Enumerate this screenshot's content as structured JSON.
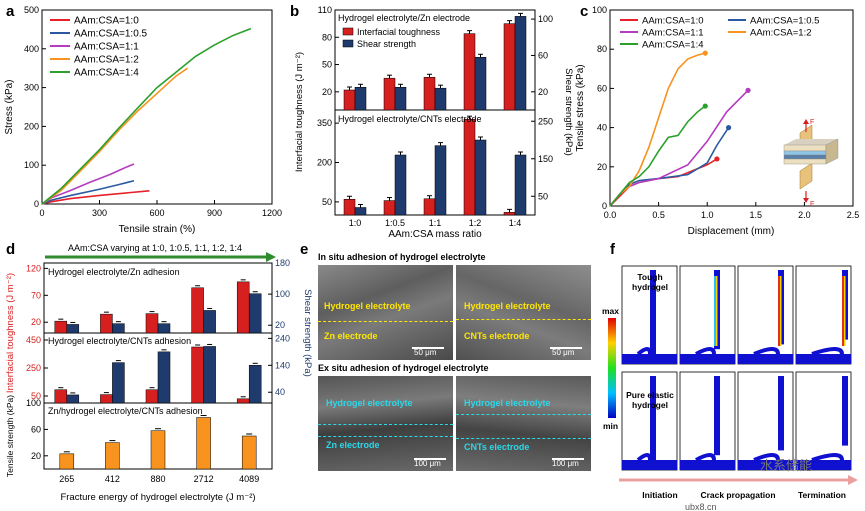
{
  "panel_labels": {
    "a": "a",
    "b": "b",
    "c": "c",
    "d": "d",
    "e": "e",
    "f": "f"
  },
  "colors": {
    "red": "#e8202a",
    "blue": "#2c5aa0",
    "magenta": "#b43cc0",
    "orange": "#f7931e",
    "green": "#2ca02c",
    "navy": "#1f3b6e",
    "dred": "#d62020",
    "arrowgreen": "#2e8b2e"
  },
  "chart_data": [
    {
      "id": "a",
      "type": "line",
      "xlabel": "Tensile strain (%)",
      "ylabel": "Stress (kPa)",
      "xlim": [
        0,
        1200
      ],
      "ylim": [
        0,
        500
      ],
      "xticks": [
        0,
        300,
        600,
        900,
        1200
      ],
      "yticks": [
        0,
        100,
        200,
        300,
        400,
        500
      ],
      "series": [
        {
          "name": "AAm:CSA=1:0",
          "color": "#e8202a",
          "x": [
            0,
            50,
            150,
            300,
            450,
            560
          ],
          "y": [
            0,
            6,
            14,
            22,
            29,
            34
          ]
        },
        {
          "name": "AAm:CSA=1:0.5",
          "color": "#2c5aa0",
          "x": [
            0,
            50,
            150,
            300,
            400,
            480
          ],
          "y": [
            0,
            10,
            22,
            38,
            50,
            60
          ]
        },
        {
          "name": "AAm:CSA=1:1",
          "color": "#b43cc0",
          "x": [
            0,
            50,
            150,
            250,
            350,
            440,
            480
          ],
          "y": [
            0,
            16,
            35,
            56,
            75,
            95,
            103
          ]
        },
        {
          "name": "AAm:CSA=1:2",
          "color": "#f7931e",
          "x": [
            0,
            100,
            200,
            300,
            400,
            500,
            600,
            700,
            760
          ],
          "y": [
            0,
            35,
            85,
            135,
            190,
            240,
            285,
            330,
            350
          ]
        },
        {
          "name": "AAm:CSA=1:4",
          "color": "#2ca02c",
          "x": [
            0,
            100,
            200,
            300,
            400,
            500,
            600,
            700,
            800,
            900,
            1000,
            1090
          ],
          "y": [
            0,
            40,
            90,
            140,
            195,
            248,
            300,
            340,
            380,
            410,
            435,
            452
          ]
        }
      ]
    },
    {
      "id": "b",
      "type": "bar",
      "title_top": "Hydrogel electrolyte/Zn electrode",
      "title_bottom": "Hydrogel electrolyte/CNTs electrode",
      "xlabel": "AAm:CSA mass ratio",
      "ylabel_left": "Interfacial toughness (J m⁻²)",
      "ylabel_right": "Shear strength (kPa)",
      "categories": [
        "1:0",
        "1:0.5",
        "1:1",
        "1:2",
        "1:4"
      ],
      "legend": [
        "Interfacial toughness",
        "Shear strength"
      ],
      "top_left_ticks": [
        "20",
        "50",
        "80",
        "110"
      ],
      "top_right_ticks": [
        "20",
        "60",
        "100"
      ],
      "bottom_left_ticks": [
        "50",
        "200",
        "350"
      ],
      "bottom_right_ticks": [
        "50",
        "150",
        "250"
      ],
      "top": {
        "ylim": [
          0,
          110
        ],
        "toughness": [
          22,
          35,
          36,
          84,
          95
        ],
        "shear_ylim": [
          0,
          110
        ],
        "shear": [
          25,
          25,
          24,
          58,
          103
        ]
      },
      "bottom": {
        "ylim": [
          0,
          400
        ],
        "toughness": [
          60,
          55,
          62,
          365,
          10
        ],
        "shear_ylim": [
          0,
          280
        ],
        "shear": [
          20,
          160,
          185,
          200,
          160
        ]
      }
    },
    {
      "id": "c",
      "type": "line",
      "xlabel": "Displacement (mm)",
      "ylabel": "Tensile stress (kPa)",
      "xlim": [
        0,
        2.5
      ],
      "ylim": [
        0,
        100
      ],
      "xticks": [
        "0.0",
        "0.5",
        "1.0",
        "1.5",
        "2.0",
        "2.5"
      ],
      "yticks": [
        0,
        20,
        40,
        60,
        80,
        100
      ],
      "series": [
        {
          "name": "AAm:CSA=1:0",
          "color": "#e8202a",
          "x": [
            0,
            0.1,
            0.2,
            0.3,
            0.5,
            0.7,
            0.9,
            1.0,
            1.1
          ],
          "y": [
            0,
            5,
            10,
            12,
            14,
            15,
            19,
            21,
            24
          ]
        },
        {
          "name": "AAm:CSA=1:0.5",
          "color": "#2c5aa0",
          "x": [
            0,
            0.1,
            0.2,
            0.3,
            0.5,
            0.8,
            1.0,
            1.1,
            1.22
          ],
          "y": [
            0,
            6,
            11,
            13,
            14,
            16,
            22,
            31,
            40
          ]
        },
        {
          "name": "AAm:CSA=1:1",
          "color": "#b43cc0",
          "x": [
            0,
            0.1,
            0.2,
            0.3,
            0.5,
            0.8,
            1.0,
            1.2,
            1.42
          ],
          "y": [
            0,
            6,
            10,
            12,
            14,
            21,
            33,
            48,
            59
          ]
        },
        {
          "name": "AAm:CSA=1:2",
          "color": "#f7931e",
          "x": [
            0,
            0.1,
            0.2,
            0.3,
            0.4,
            0.5,
            0.6,
            0.7,
            0.8,
            0.9,
            0.98
          ],
          "y": [
            0,
            6,
            10,
            18,
            30,
            45,
            60,
            70,
            75,
            77,
            78
          ]
        },
        {
          "name": "AAm:CSA=1:4",
          "color": "#2ca02c",
          "x": [
            0,
            0.1,
            0.2,
            0.3,
            0.4,
            0.5,
            0.6,
            0.7,
            0.8,
            0.9,
            0.98
          ],
          "y": [
            0,
            6,
            12,
            15,
            20,
            28,
            35,
            36,
            43,
            48,
            51
          ]
        }
      ],
      "force_label": "F"
    },
    {
      "id": "d",
      "type": "bar",
      "arrow_text": "AAm:CSA varying at 1:0, 1:0.5, 1:1, 1:2, 1:4",
      "xlabel": "Fracture energy of hydrogel electrolyte (J m⁻²)",
      "categories": [
        "265",
        "412",
        "880",
        "2712",
        "4089"
      ],
      "ylabel_left": "Interfacial toughness (J m⁻²)",
      "ylabel_right": "Shear strength (kPa)",
      "ylabel_bottom": "Tensile strength (kPa)",
      "sub_titles": [
        "Hydrogel electrolyte/Zn adhesion",
        "Hydrogel electrolyte/CNTs adhesion",
        "Zn/hydrogel electrolyte/CNTs adhesion"
      ],
      "top_left_ticks": [
        "20",
        "70",
        "120"
      ],
      "top_right_ticks": [
        "20",
        "100",
        "180"
      ],
      "mid_left_ticks": [
        "50",
        "250",
        "450"
      ],
      "mid_right_ticks": [
        "40",
        "140",
        "240"
      ],
      "bottom_ticks": [
        "20",
        "60",
        "100"
      ],
      "top": {
        "toughness": [
          22,
          35,
          36,
          84,
          95
        ],
        "shear": [
          22,
          24,
          24,
          58,
          101
        ]
      },
      "mid": {
        "toughness": [
          95,
          60,
          95,
          400,
          30
        ],
        "shear": [
          30,
          150,
          190,
          210,
          140
        ]
      },
      "bottom": {
        "tensile": [
          23,
          40,
          58,
          78,
          50
        ]
      }
    }
  ],
  "panel_e": {
    "title_top": "In situ adhesion of hydrogel electrolyte",
    "title_bottom": "Ex situ adhesion of hydrogel electrolyte",
    "labels": {
      "tl_top": "Hydrogel electrolyte",
      "tl_bot": "Zn electrode",
      "tr_top": "Hydrogel electrolyte",
      "tr_bot": "CNTs electrode",
      "bl_top": "Hydrogel electrolyte",
      "bl_bot": "Zn electrode",
      "br_top": "Hydrogel electrolyte",
      "br_bot": "CNTs electrode"
    },
    "scale_top": "50 μm",
    "scale_bottom": "100 μm"
  },
  "panel_f": {
    "colorbar_max": "max",
    "colorbar_min": "min",
    "label_tough": "Tough hydrogel",
    "label_pure": "Pure elastic hydrogel",
    "stages": [
      "Initiation",
      "Crack propagation",
      "Termination"
    ],
    "watermark": "水系储能",
    "url": "ubx8.cn"
  }
}
